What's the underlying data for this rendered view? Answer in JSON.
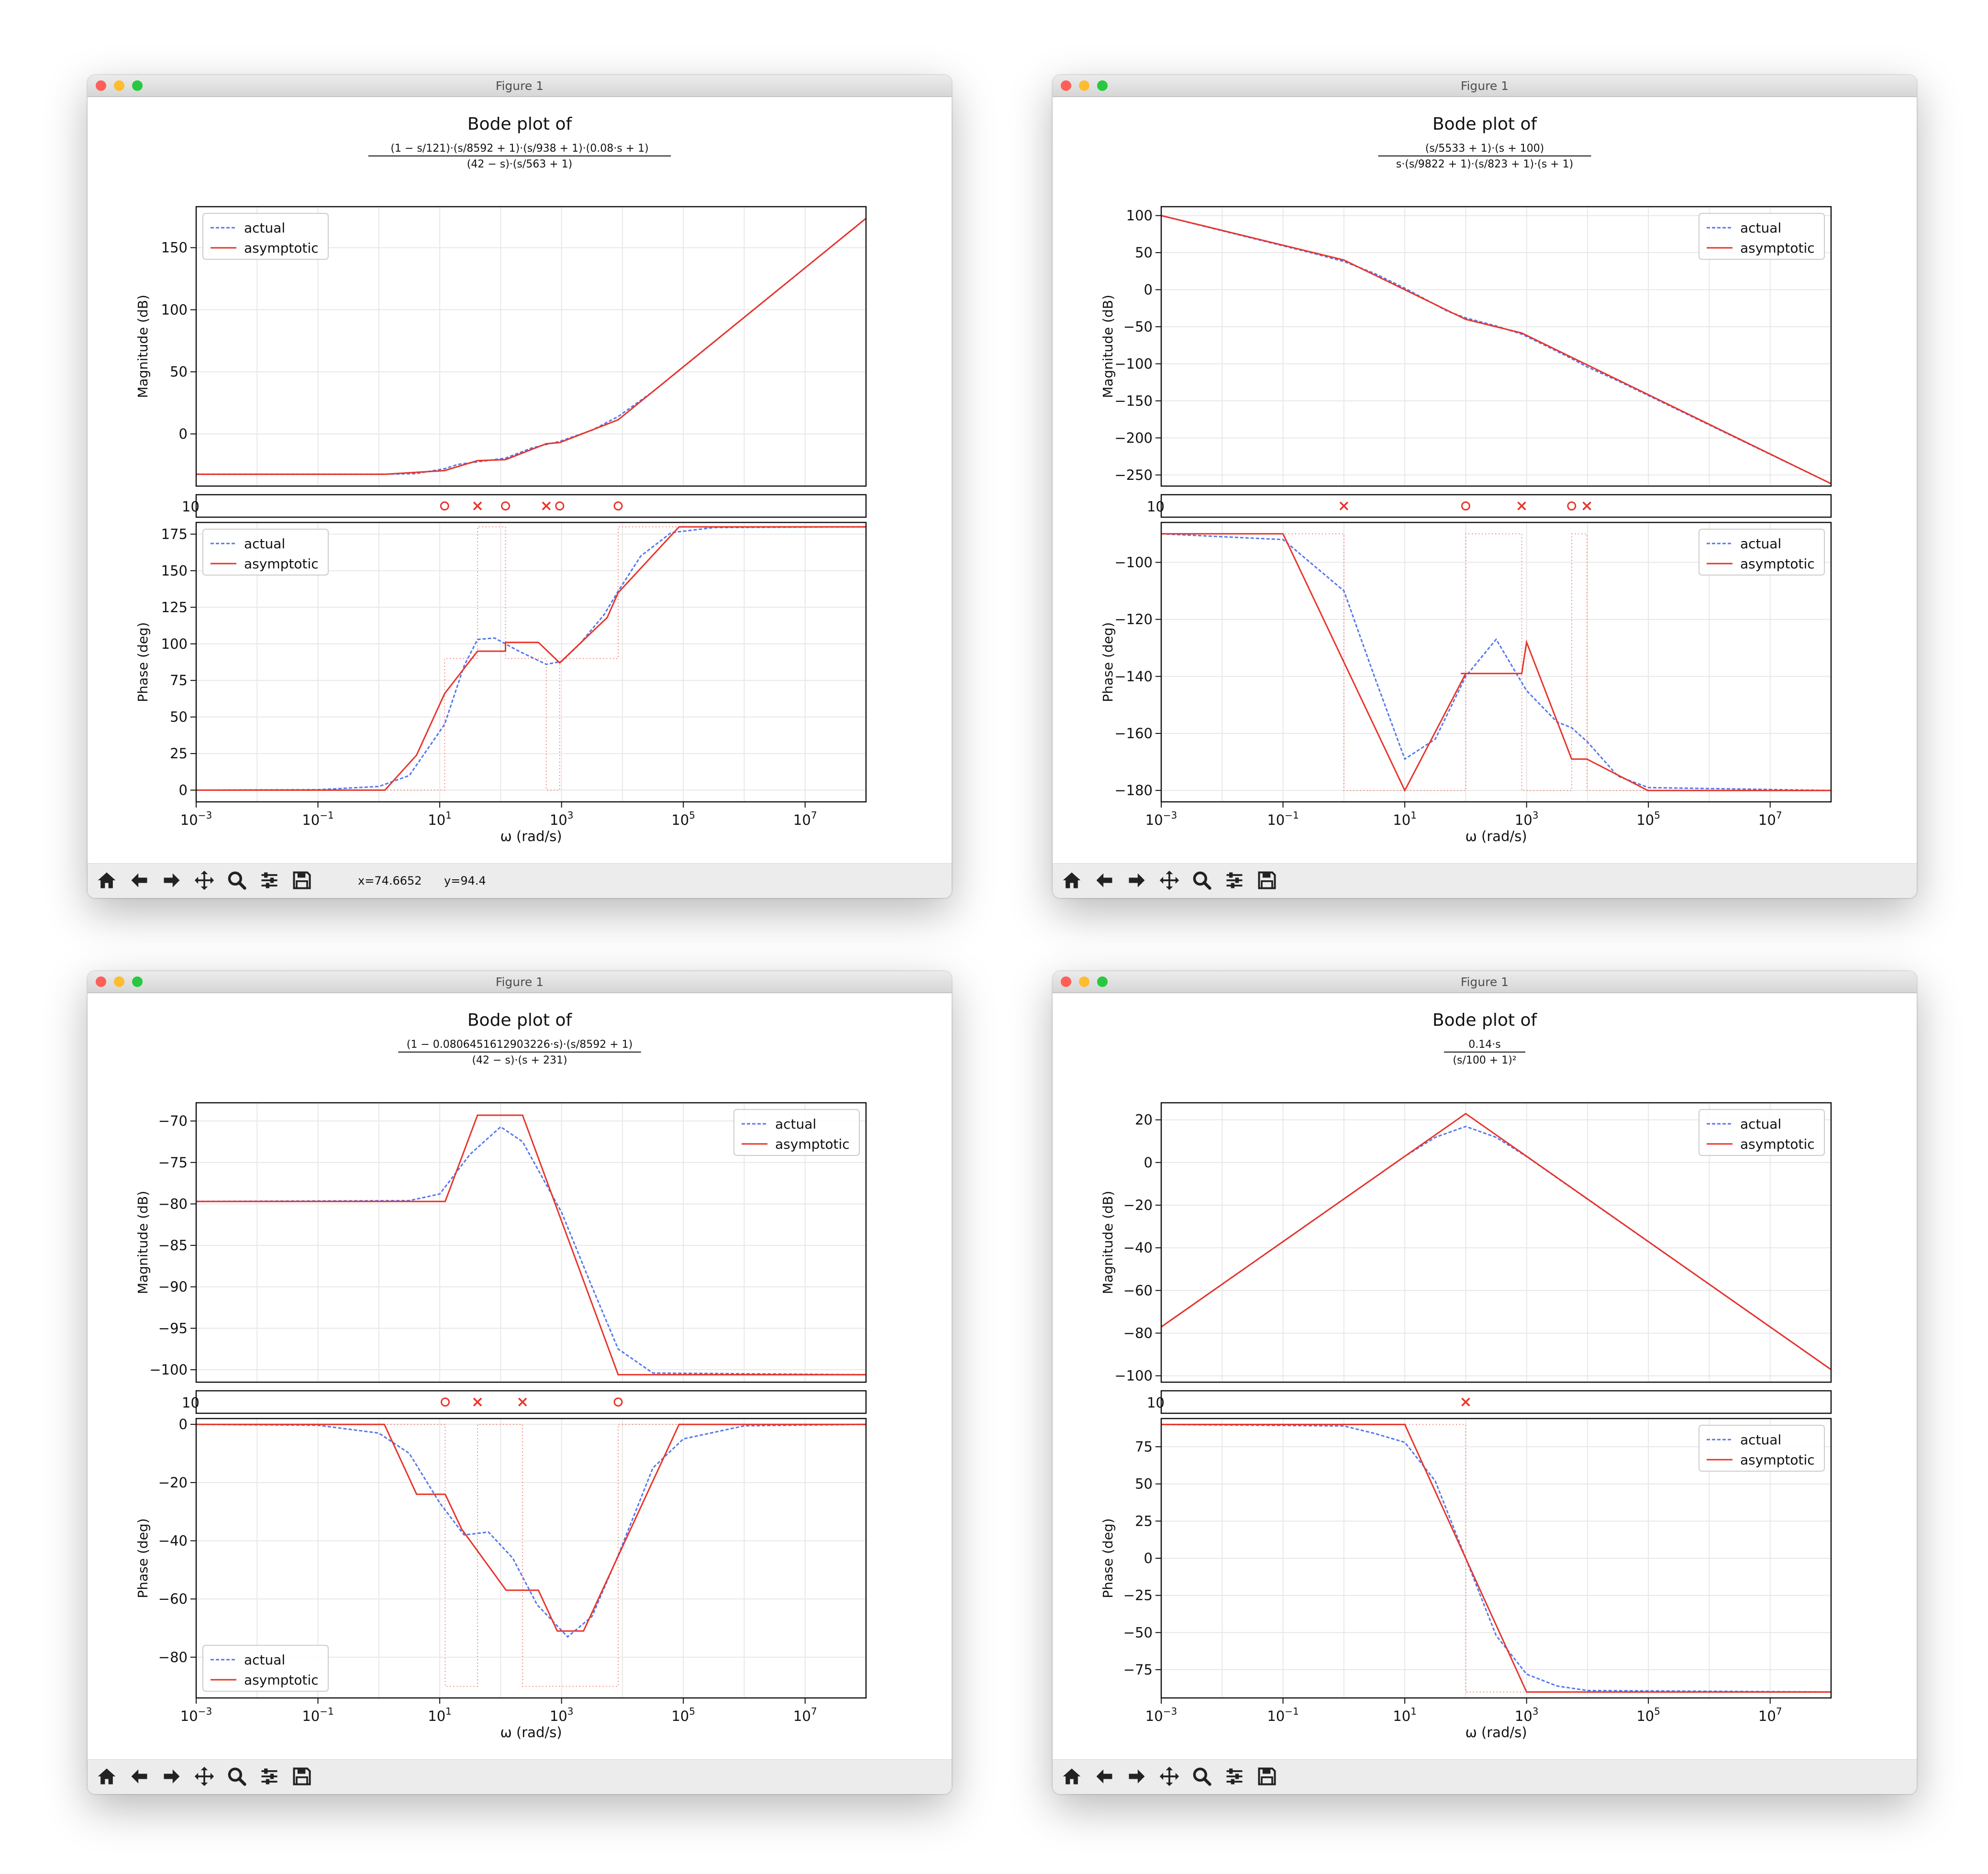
{
  "windows": [
    {
      "title": "Figure 1",
      "coords": {
        "x": "x=74.6652",
        "y": "y=94.4"
      },
      "chart_data": {
        "type": "line",
        "title": "Bode plot of",
        "tf_num": "(1 − s/121)·(s/8592 + 1)·(s/938 + 1)·(0.08·s + 1)",
        "tf_den": "(42 − s)·(s/563 + 1)",
        "xlabel": "ω (rad/s)",
        "x_log_range": [
          -3,
          8
        ],
        "x_ticks": [
          -3,
          -1,
          1,
          3,
          5,
          7
        ],
        "legend": [
          "actual",
          "asymptotic"
        ],
        "mag": {
          "ylabel": "Magnitude (dB)",
          "ylim": [
            -42,
            183
          ],
          "ticks": [
            0,
            50,
            100,
            150
          ],
          "legend_loc": "upper left",
          "asymptotic": [
            [
              -3,
              -32.5
            ],
            [
              0.1,
              -32.5
            ],
            [
              1.08,
              -29.5
            ],
            [
              1.62,
              -21.5
            ],
            [
              2.08,
              -20.7
            ],
            [
              2.75,
              -7.9
            ],
            [
              2.97,
              -7
            ],
            [
              3.93,
              11.4
            ],
            [
              8,
              173.6
            ]
          ],
          "actual": [
            [
              -3,
              -32.5
            ],
            [
              0,
              -32.5
            ],
            [
              0.6,
              -32
            ],
            [
              1.08,
              -28
            ],
            [
              1.3,
              -24.5
            ],
            [
              1.62,
              -22.5
            ],
            [
              2.08,
              -19.5
            ],
            [
              2.5,
              -11.5
            ],
            [
              2.75,
              -8.5
            ],
            [
              2.97,
              -6
            ],
            [
              3.5,
              3
            ],
            [
              3.93,
              14
            ],
            [
              4.5,
              34
            ],
            [
              8,
              173.6
            ]
          ]
        },
        "marker_strip": {
          "label": "10",
          "zeros": [
            1.08,
            2.08,
            2.97,
            3.93
          ],
          "poles": [
            1.62,
            2.75
          ]
        },
        "phase": {
          "ylabel": "Phase (deg)",
          "ylim": [
            -8,
            183
          ],
          "ticks": [
            0,
            25,
            50,
            75,
            100,
            125,
            150,
            175
          ],
          "legend_loc": "upper left",
          "asymptotic": [
            [
              -3,
              0
            ],
            [
              0.1,
              0
            ],
            [
              0.62,
              24
            ],
            [
              1.08,
              66
            ],
            [
              1.62,
              95
            ],
            [
              2.08,
              95
            ],
            [
              2.08,
              101
            ],
            [
              2.62,
              101
            ],
            [
              2.97,
              87
            ],
            [
              3.75,
              118
            ],
            [
              3.93,
              135
            ],
            [
              4.93,
              180
            ],
            [
              8,
              180
            ]
          ],
          "actual": [
            [
              -3,
              0
            ],
            [
              -1,
              0.3
            ],
            [
              0,
              2.5
            ],
            [
              0.5,
              10
            ],
            [
              1.08,
              45
            ],
            [
              1.4,
              85
            ],
            [
              1.62,
              103
            ],
            [
              1.9,
              104
            ],
            [
              2.3,
              95
            ],
            [
              2.75,
              86
            ],
            [
              3,
              88
            ],
            [
              3.3,
              100
            ],
            [
              3.7,
              120
            ],
            [
              3.93,
              136
            ],
            [
              4.3,
              160
            ],
            [
              4.8,
              176
            ],
            [
              5.5,
              179.5
            ],
            [
              8,
              180
            ]
          ],
          "step": [
            [
              -3,
              0
            ],
            [
              1.08,
              0
            ],
            [
              1.08,
              90
            ],
            [
              1.62,
              90
            ],
            [
              1.62,
              180
            ],
            [
              2.08,
              180
            ],
            [
              2.08,
              90
            ],
            [
              2.75,
              90
            ],
            [
              2.75,
              0
            ],
            [
              2.97,
              0
            ],
            [
              2.97,
              90
            ],
            [
              3.93,
              90
            ],
            [
              3.93,
              180
            ],
            [
              8,
              180
            ]
          ]
        }
      }
    },
    {
      "title": "Figure 1",
      "chart_data": {
        "type": "line",
        "title": "Bode plot of",
        "tf_num": "(s/5533 + 1)·(s + 100)",
        "tf_den": "s·(s/9822 + 1)·(s/823 + 1)·(s + 1)",
        "xlabel": "ω (rad/s)",
        "x_log_range": [
          -3,
          8
        ],
        "x_ticks": [
          -3,
          -1,
          1,
          3,
          5,
          7
        ],
        "legend": [
          "actual",
          "asymptotic"
        ],
        "mag": {
          "ylabel": "Magnitude (dB)",
          "ylim": [
            -265,
            112
          ],
          "ticks": [
            100,
            50,
            0,
            -50,
            -100,
            -150,
            -200,
            -250
          ],
          "legend_loc": "upper right",
          "asymptotic": [
            [
              -3,
              100
            ],
            [
              0,
              40
            ],
            [
              2,
              -40
            ],
            [
              2.92,
              -58.4
            ],
            [
              3.74,
              -91.3
            ],
            [
              3.99,
              -101.3
            ],
            [
              8,
              -261.7
            ]
          ],
          "actual": [
            [
              -3,
              100
            ],
            [
              -0.5,
              49
            ],
            [
              0,
              38
            ],
            [
              0.5,
              22
            ],
            [
              1,
              2
            ],
            [
              1.7,
              -29
            ],
            [
              2,
              -38
            ],
            [
              2.5,
              -49
            ],
            [
              2.92,
              -60
            ],
            [
              3.4,
              -79
            ],
            [
              3.74,
              -93
            ],
            [
              3.99,
              -104
            ],
            [
              4.5,
              -123
            ],
            [
              8,
              -261.7
            ]
          ]
        },
        "marker_strip": {
          "label": "10",
          "zeros": [
            2,
            3.74
          ],
          "poles": [
            0,
            2.92,
            3.99
          ]
        },
        "phase": {
          "ylabel": "Phase (deg)",
          "ylim": [
            -184,
            -86
          ],
          "ticks": [
            -100,
            -120,
            -140,
            -160,
            -180
          ],
          "legend_loc": "upper right",
          "asymptotic": [
            [
              -3,
              -90
            ],
            [
              -1,
              -90
            ],
            [
              1,
              -180
            ],
            [
              2,
              -139
            ],
            [
              1.92,
              -139
            ],
            [
              2.92,
              -139
            ],
            [
              3,
              -128
            ],
            [
              3.74,
              -169
            ],
            [
              3.99,
              -169
            ],
            [
              4.99,
              -180
            ],
            [
              8,
              -180
            ]
          ],
          "actual": [
            [
              -3,
              -90
            ],
            [
              -1,
              -92
            ],
            [
              0,
              -110
            ],
            [
              0.5,
              -140
            ],
            [
              1,
              -169
            ],
            [
              1.5,
              -162
            ],
            [
              2,
              -140
            ],
            [
              2.5,
              -127
            ],
            [
              3,
              -145
            ],
            [
              3.5,
              -156
            ],
            [
              3.74,
              -158
            ],
            [
              4,
              -163
            ],
            [
              4.5,
              -175
            ],
            [
              5,
              -179
            ],
            [
              8,
              -180
            ]
          ],
          "step": [
            [
              -3,
              -90
            ],
            [
              0,
              -90
            ],
            [
              0,
              -180
            ],
            [
              2,
              -180
            ],
            [
              2,
              -90
            ],
            [
              2.92,
              -90
            ],
            [
              2.92,
              -180
            ],
            [
              3.74,
              -180
            ],
            [
              3.74,
              -90
            ],
            [
              3.99,
              -90
            ],
            [
              3.99,
              -180
            ],
            [
              8,
              -180
            ]
          ]
        }
      }
    },
    {
      "title": "Figure 1",
      "chart_data": {
        "type": "line",
        "title": "Bode plot of",
        "tf_num": "(1 − 0.0806451612903226·s)·(s/8592 + 1)",
        "tf_den": "(42 − s)·(s + 231)",
        "xlabel": "ω (rad/s)",
        "x_log_range": [
          -3,
          8
        ],
        "x_ticks": [
          -3,
          -1,
          1,
          3,
          5,
          7
        ],
        "legend": [
          "actual",
          "asymptotic"
        ],
        "mag": {
          "ylabel": "Magnitude (dB)",
          "ylim": [
            -101.5,
            -67.8
          ],
          "ticks": [
            -70,
            -75,
            -80,
            -85,
            -90,
            -95,
            -100
          ],
          "legend_loc": "upper right",
          "asymptotic": [
            [
              -3,
              -79.7
            ],
            [
              1.09,
              -79.7
            ],
            [
              1.62,
              -69.3
            ],
            [
              2.36,
              -69.3
            ],
            [
              3.93,
              -100.6
            ],
            [
              8,
              -100.6
            ]
          ],
          "actual": [
            [
              -3,
              -79.7
            ],
            [
              0.5,
              -79.6
            ],
            [
              1,
              -78.8
            ],
            [
              1.5,
              -74
            ],
            [
              2,
              -70.7
            ],
            [
              2.36,
              -72.5
            ],
            [
              3,
              -81
            ],
            [
              3.5,
              -90
            ],
            [
              3.93,
              -97.5
            ],
            [
              4.5,
              -100.4
            ],
            [
              8,
              -100.6
            ]
          ]
        },
        "marker_strip": {
          "label": "10",
          "zeros": [
            1.09,
            3.93
          ],
          "poles": [
            1.62,
            2.36
          ]
        },
        "phase": {
          "ylabel": "Phase (deg)",
          "ylim": [
            -94,
            2
          ],
          "ticks": [
            0,
            -20,
            -40,
            -60,
            -80
          ],
          "legend_loc": "lower left",
          "asymptotic": [
            [
              -3,
              0
            ],
            [
              0.09,
              0
            ],
            [
              0.62,
              -24
            ],
            [
              1.09,
              -24
            ],
            [
              1.36,
              -36
            ],
            [
              2.09,
              -57
            ],
            [
              2.62,
              -57
            ],
            [
              2.93,
              -71
            ],
            [
              3.36,
              -71
            ],
            [
              4.93,
              0
            ],
            [
              8,
              0
            ]
          ],
          "actual": [
            [
              -3,
              0
            ],
            [
              -1,
              -0.3
            ],
            [
              0,
              -3
            ],
            [
              0.5,
              -10
            ],
            [
              1,
              -27
            ],
            [
              1.4,
              -38
            ],
            [
              1.8,
              -37
            ],
            [
              2.2,
              -46
            ],
            [
              2.6,
              -62
            ],
            [
              3.1,
              -73
            ],
            [
              3.5,
              -66
            ],
            [
              3.93,
              -45
            ],
            [
              4.5,
              -15
            ],
            [
              5,
              -5
            ],
            [
              6,
              -0.5
            ],
            [
              8,
              0
            ]
          ],
          "step": [
            [
              -3,
              0
            ],
            [
              1.09,
              0
            ],
            [
              1.09,
              -90
            ],
            [
              1.62,
              -90
            ],
            [
              1.62,
              0
            ],
            [
              2.36,
              0
            ],
            [
              2.36,
              -90
            ],
            [
              3.93,
              -90
            ],
            [
              3.93,
              0
            ],
            [
              8,
              0
            ]
          ]
        }
      }
    },
    {
      "title": "Figure 1",
      "chart_data": {
        "type": "line",
        "title": "Bode plot of",
        "tf_num": "0.14·s",
        "tf_den": "(s/100 + 1)²",
        "xlabel": "ω (rad/s)",
        "x_log_range": [
          -3,
          8
        ],
        "x_ticks": [
          -3,
          -1,
          1,
          3,
          5,
          7
        ],
        "legend": [
          "actual",
          "asymptotic"
        ],
        "mag": {
          "ylabel": "Magnitude (dB)",
          "ylim": [
            -103,
            28
          ],
          "ticks": [
            20,
            0,
            -20,
            -40,
            -60,
            -80,
            -100
          ],
          "legend_loc": "upper right",
          "asymptotic": [
            [
              -3,
              -77.1
            ],
            [
              2,
              22.9
            ],
            [
              8,
              -97.1
            ]
          ],
          "actual": [
            [
              -3,
              -77.1
            ],
            [
              1,
              2.9
            ],
            [
              1.5,
              11.8
            ],
            [
              2,
              16.9
            ],
            [
              2.5,
              11.8
            ],
            [
              3,
              2.8
            ],
            [
              8,
              -97.1
            ]
          ]
        },
        "marker_strip": {
          "label": "10",
          "zeros": [],
          "poles": [
            2
          ]
        },
        "phase": {
          "ylabel": "Phase (deg)",
          "ylim": [
            -94,
            94
          ],
          "ticks": [
            75,
            50,
            25,
            0,
            -25,
            -50,
            -75
          ],
          "legend_loc": "upper right",
          "asymptotic": [
            [
              -3,
              90
            ],
            [
              1,
              90
            ],
            [
              3,
              -90
            ],
            [
              8,
              -90
            ]
          ],
          "actual": [
            [
              -3,
              90
            ],
            [
              0,
              89
            ],
            [
              0.5,
              84
            ],
            [
              1,
              78
            ],
            [
              1.5,
              52
            ],
            [
              2,
              0
            ],
            [
              2.5,
              -52
            ],
            [
              3,
              -78
            ],
            [
              3.5,
              -86
            ],
            [
              4,
              -89
            ],
            [
              8,
              -90
            ]
          ],
          "step": [
            [
              -3,
              90
            ],
            [
              2,
              90
            ],
            [
              2,
              -90
            ],
            [
              8,
              -90
            ]
          ]
        }
      }
    }
  ]
}
